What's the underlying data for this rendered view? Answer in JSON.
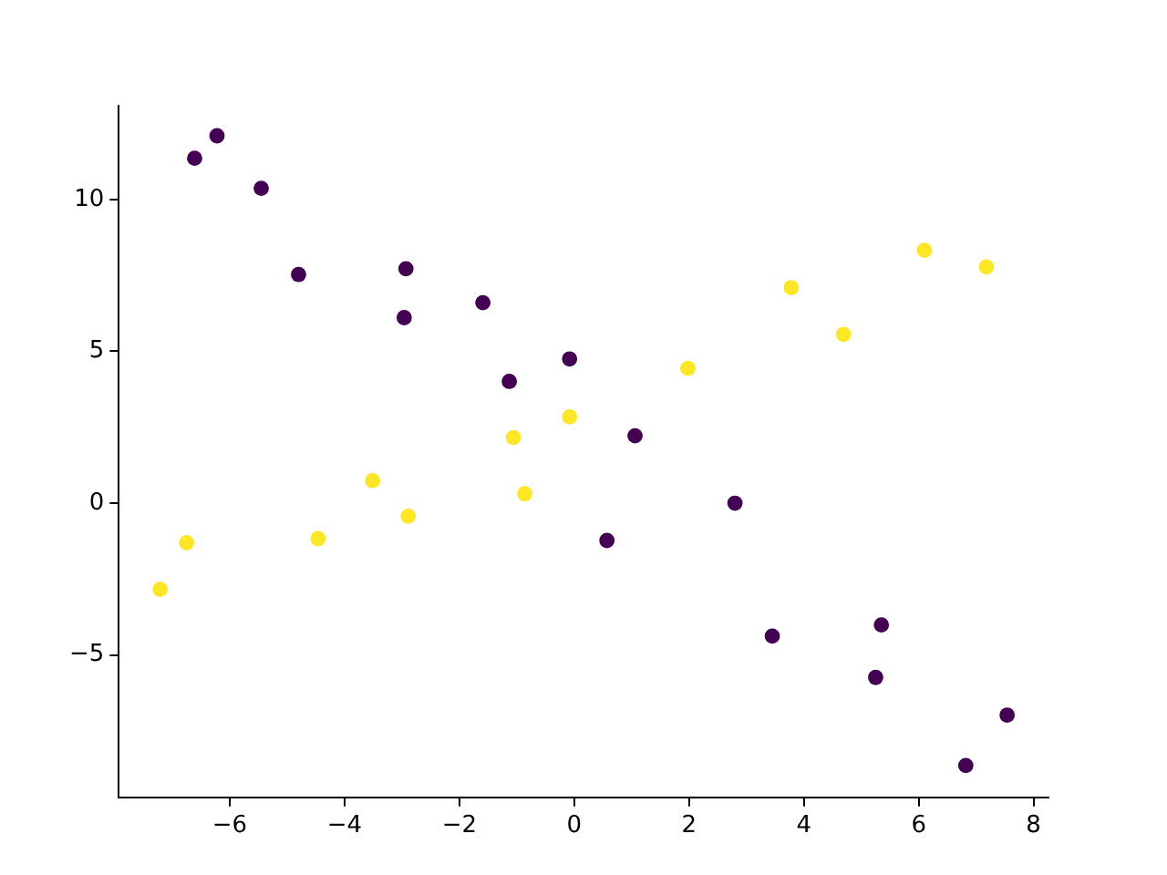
{
  "chart_data": {
    "type": "scatter",
    "xlim": [
      -7.93,
      8.26
    ],
    "ylim": [
      -9.69,
      13.09
    ],
    "xticks": [
      -6,
      -4,
      -2,
      0,
      2,
      4,
      6,
      8
    ],
    "yticks": [
      -5,
      0,
      5,
      10
    ],
    "grid": false,
    "legend": false,
    "marker": "circle",
    "series": [
      {
        "color": "#440154",
        "x": [
          -6.22,
          -6.61,
          -5.45,
          -4.8,
          -2.93,
          -2.96,
          -1.59,
          -0.08,
          -1.13,
          1.06,
          2.8,
          0.57,
          3.45,
          5.35,
          5.25,
          7.54,
          6.82
        ],
        "values": [
          12.1,
          11.36,
          10.37,
          7.53,
          7.72,
          6.11,
          6.6,
          4.75,
          4.01,
          2.22,
          0,
          -1.23,
          -4.38,
          -4.01,
          -5.74,
          -6.98,
          -8.64
        ]
      },
      {
        "color": "#fde725",
        "x": [
          -7.21,
          -6.75,
          -4.46,
          -3.51,
          -2.89,
          -1.06,
          -0.86,
          -0.08,
          1.98,
          3.78,
          4.69,
          6.1,
          7.18
        ],
        "values": [
          -2.84,
          -1.3,
          -1.17,
          0.74,
          -0.43,
          2.16,
          0.31,
          2.84,
          4.44,
          7.1,
          5.56,
          8.33,
          7.78
        ]
      }
    ]
  }
}
